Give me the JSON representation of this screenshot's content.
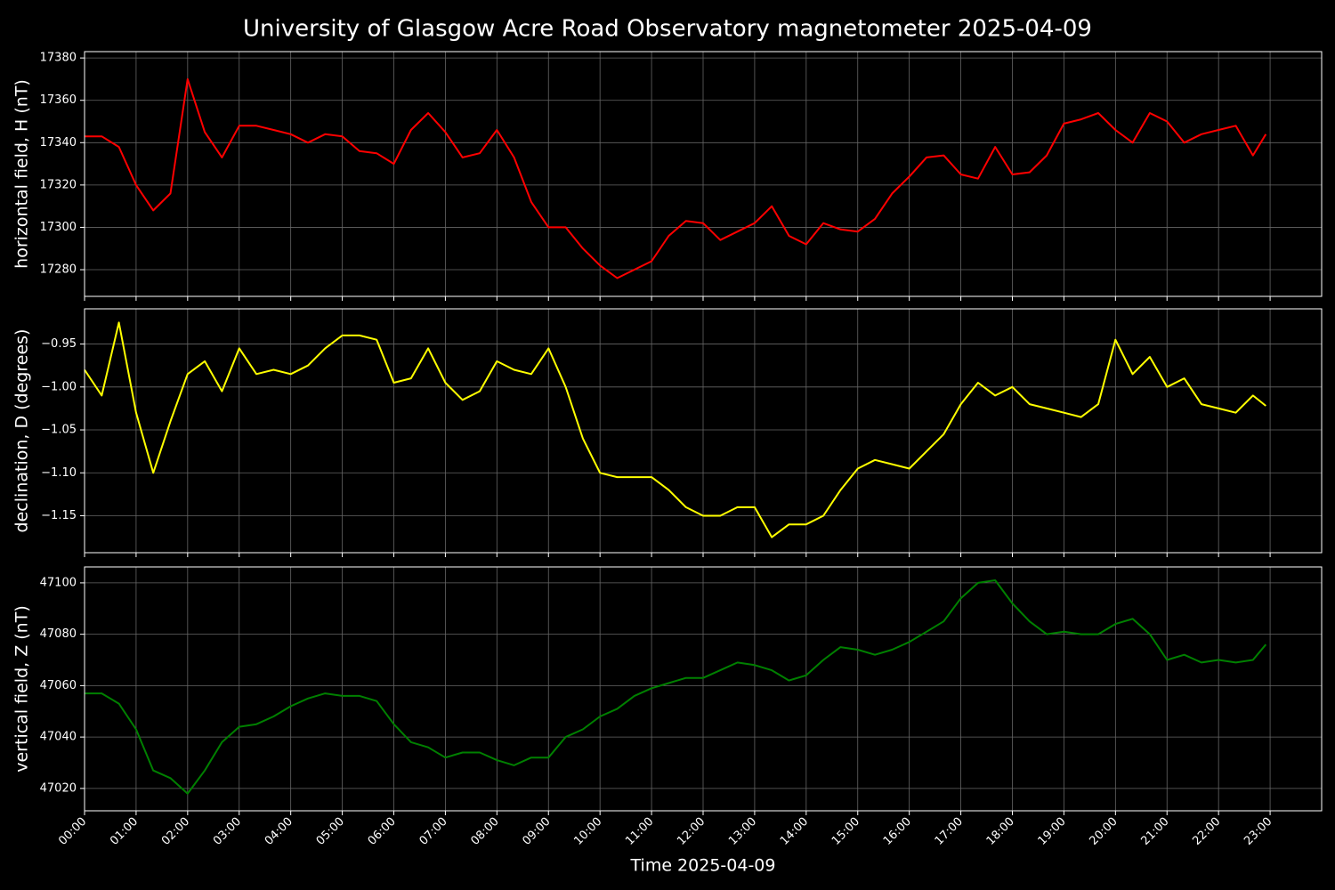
{
  "chart_data": [
    {
      "type": "line",
      "title": "University of Glasgow Acre Road Observatory magnetometer 2025-04-09",
      "ylabel": "horizontal field, H (nT)",
      "color": "#ff0000",
      "grid": true,
      "xlim": [
        "00:00",
        "24:00"
      ],
      "ylim": [
        17267.4,
        17383
      ],
      "yticks": [
        17280,
        17300,
        17320,
        17340,
        17360,
        17380
      ],
      "x": [
        "00:00",
        "00:20",
        "00:40",
        "01:00",
        "01:20",
        "01:40",
        "02:00",
        "02:20",
        "02:40",
        "03:00",
        "03:20",
        "03:40",
        "04:00",
        "04:20",
        "04:40",
        "05:00",
        "05:20",
        "05:40",
        "06:00",
        "06:20",
        "06:40",
        "07:00",
        "07:20",
        "07:40",
        "08:00",
        "08:20",
        "08:40",
        "09:00",
        "09:20",
        "09:40",
        "10:00",
        "10:20",
        "10:40",
        "11:00",
        "11:20",
        "11:40",
        "12:00",
        "12:20",
        "12:40",
        "13:00",
        "13:20",
        "13:40",
        "14:00",
        "14:20",
        "14:40",
        "15:00",
        "15:20",
        "15:40",
        "16:00",
        "16:20",
        "16:40",
        "17:00",
        "17:20",
        "17:40",
        "18:00",
        "18:20",
        "18:40",
        "19:00",
        "19:20",
        "19:40",
        "20:00",
        "20:20",
        "20:40",
        "21:00",
        "21:20",
        "21:40",
        "22:00",
        "22:20",
        "22:40",
        "22:55"
      ],
      "values": [
        17343,
        17343,
        17338,
        17320,
        17308,
        17316,
        17370,
        17345,
        17333,
        17348,
        17348,
        17346,
        17344,
        17340,
        17344,
        17343,
        17336,
        17335,
        17330,
        17346,
        17354,
        17345,
        17333,
        17335,
        17346,
        17333,
        17312,
        17300,
        17300,
        17290,
        17282,
        17276,
        17280,
        17284,
        17296,
        17303,
        17302,
        17294,
        17298,
        17302,
        17310,
        17296,
        17292,
        17302,
        17299,
        17298,
        17304,
        17316,
        17324,
        17333,
        17334,
        17325,
        17323,
        17338,
        17325,
        17326,
        17334,
        17349,
        17351,
        17354,
        17346,
        17340,
        17354,
        17350,
        17340,
        17344,
        17346,
        17348,
        17334,
        17344
      ]
    },
    {
      "type": "line",
      "ylabel": "declination, D (degrees)",
      "color": "#ffff00",
      "grid": true,
      "xlim": [
        "00:00",
        "24:00"
      ],
      "ylim": [
        -1.193,
        -0.909
      ],
      "yticks": [
        {
          "value": -1.15,
          "label": "−1.15"
        },
        {
          "value": -1.1,
          "label": "−1.10"
        },
        {
          "value": -1.05,
          "label": "−1.05"
        },
        {
          "value": -1.0,
          "label": "−1.00"
        },
        {
          "value": -0.95,
          "label": "−0.95"
        }
      ],
      "x": [
        "00:00",
        "00:20",
        "00:40",
        "01:00",
        "01:20",
        "01:40",
        "02:00",
        "02:20",
        "02:40",
        "03:00",
        "03:20",
        "03:40",
        "04:00",
        "04:20",
        "04:40",
        "05:00",
        "05:20",
        "05:40",
        "06:00",
        "06:20",
        "06:40",
        "07:00",
        "07:20",
        "07:40",
        "08:00",
        "08:20",
        "08:40",
        "09:00",
        "09:20",
        "09:40",
        "10:00",
        "10:20",
        "10:40",
        "11:00",
        "11:20",
        "11:40",
        "12:00",
        "12:20",
        "12:40",
        "13:00",
        "13:20",
        "13:40",
        "14:00",
        "14:20",
        "14:40",
        "15:00",
        "15:20",
        "15:40",
        "16:00",
        "16:20",
        "16:40",
        "17:00",
        "17:20",
        "17:40",
        "18:00",
        "18:20",
        "18:40",
        "19:00",
        "19:20",
        "19:40",
        "20:00",
        "20:20",
        "20:40",
        "21:00",
        "21:20",
        "21:40",
        "22:00",
        "22:20",
        "22:40",
        "22:55"
      ],
      "values": [
        -0.98,
        -1.01,
        -0.925,
        -1.03,
        -1.1,
        -1.04,
        -0.985,
        -0.97,
        -1.005,
        -0.955,
        -0.985,
        -0.98,
        -0.985,
        -0.975,
        -0.955,
        -0.94,
        -0.94,
        -0.945,
        -0.995,
        -0.99,
        -0.955,
        -0.995,
        -1.015,
        -1.005,
        -0.97,
        -0.98,
        -0.985,
        -0.955,
        -1.0,
        -1.06,
        -1.1,
        -1.105,
        -1.105,
        -1.105,
        -1.12,
        -1.14,
        -1.15,
        -1.15,
        -1.14,
        -1.14,
        -1.175,
        -1.16,
        -1.16,
        -1.15,
        -1.12,
        -1.095,
        -1.085,
        -1.09,
        -1.095,
        -1.075,
        -1.055,
        -1.02,
        -0.995,
        -1.01,
        -1.0,
        -1.02,
        -1.025,
        -1.03,
        -1.035,
        -1.02,
        -0.945,
        -0.985,
        -0.965,
        -1.0,
        -0.99,
        -1.02,
        -1.025,
        -1.03,
        -1.01,
        -1.022
      ]
    },
    {
      "type": "line",
      "ylabel": "vertical field, Z (nT)",
      "xlabel": "Time 2025-04-09",
      "color": "#008000",
      "grid": true,
      "xlim": [
        "00:00",
        "24:00"
      ],
      "ylim": [
        47011.3,
        47106.2
      ],
      "yticks": [
        47020,
        47040,
        47060,
        47080,
        47100
      ],
      "xticks": [
        "00:00",
        "01:00",
        "02:00",
        "03:00",
        "04:00",
        "05:00",
        "06:00",
        "07:00",
        "08:00",
        "09:00",
        "10:00",
        "11:00",
        "12:00",
        "13:00",
        "14:00",
        "15:00",
        "16:00",
        "17:00",
        "18:00",
        "19:00",
        "20:00",
        "21:00",
        "22:00",
        "23:00"
      ],
      "x": [
        "00:00",
        "00:20",
        "00:40",
        "01:00",
        "01:20",
        "01:40",
        "02:00",
        "02:20",
        "02:40",
        "03:00",
        "03:20",
        "03:40",
        "04:00",
        "04:20",
        "04:40",
        "05:00",
        "05:20",
        "05:40",
        "06:00",
        "06:20",
        "06:40",
        "07:00",
        "07:20",
        "07:40",
        "08:00",
        "08:20",
        "08:40",
        "09:00",
        "09:20",
        "09:40",
        "10:00",
        "10:20",
        "10:40",
        "11:00",
        "11:20",
        "11:40",
        "12:00",
        "12:20",
        "12:40",
        "13:00",
        "13:20",
        "13:40",
        "14:00",
        "14:20",
        "14:40",
        "15:00",
        "15:20",
        "15:40",
        "16:00",
        "16:20",
        "16:40",
        "17:00",
        "17:20",
        "17:40",
        "18:00",
        "18:20",
        "18:40",
        "19:00",
        "19:20",
        "19:40",
        "20:00",
        "20:20",
        "20:40",
        "21:00",
        "21:20",
        "21:40",
        "22:00",
        "22:20",
        "22:40",
        "22:55"
      ],
      "values": [
        47057,
        47057,
        47053,
        47043,
        47027,
        47024,
        47018,
        47027,
        47038,
        47044,
        47045,
        47048,
        47052,
        47055,
        47057,
        47056,
        47056,
        47054,
        47045,
        47038,
        47036,
        47032,
        47034,
        47034,
        47031,
        47029,
        47032,
        47032,
        47040,
        47043,
        47048,
        47051,
        47056,
        47059,
        47061,
        47063,
        47063,
        47066,
        47069,
        47068,
        47066,
        47062,
        47064,
        47070,
        47075,
        47074,
        47072,
        47074,
        47077,
        47081,
        47085,
        47094,
        47100,
        47101,
        47092,
        47085,
        47080,
        47081,
        47080,
        47080,
        47084,
        47086,
        47080,
        47070,
        47072,
        47069,
        47070,
        47069,
        47070,
        47076
      ]
    }
  ]
}
